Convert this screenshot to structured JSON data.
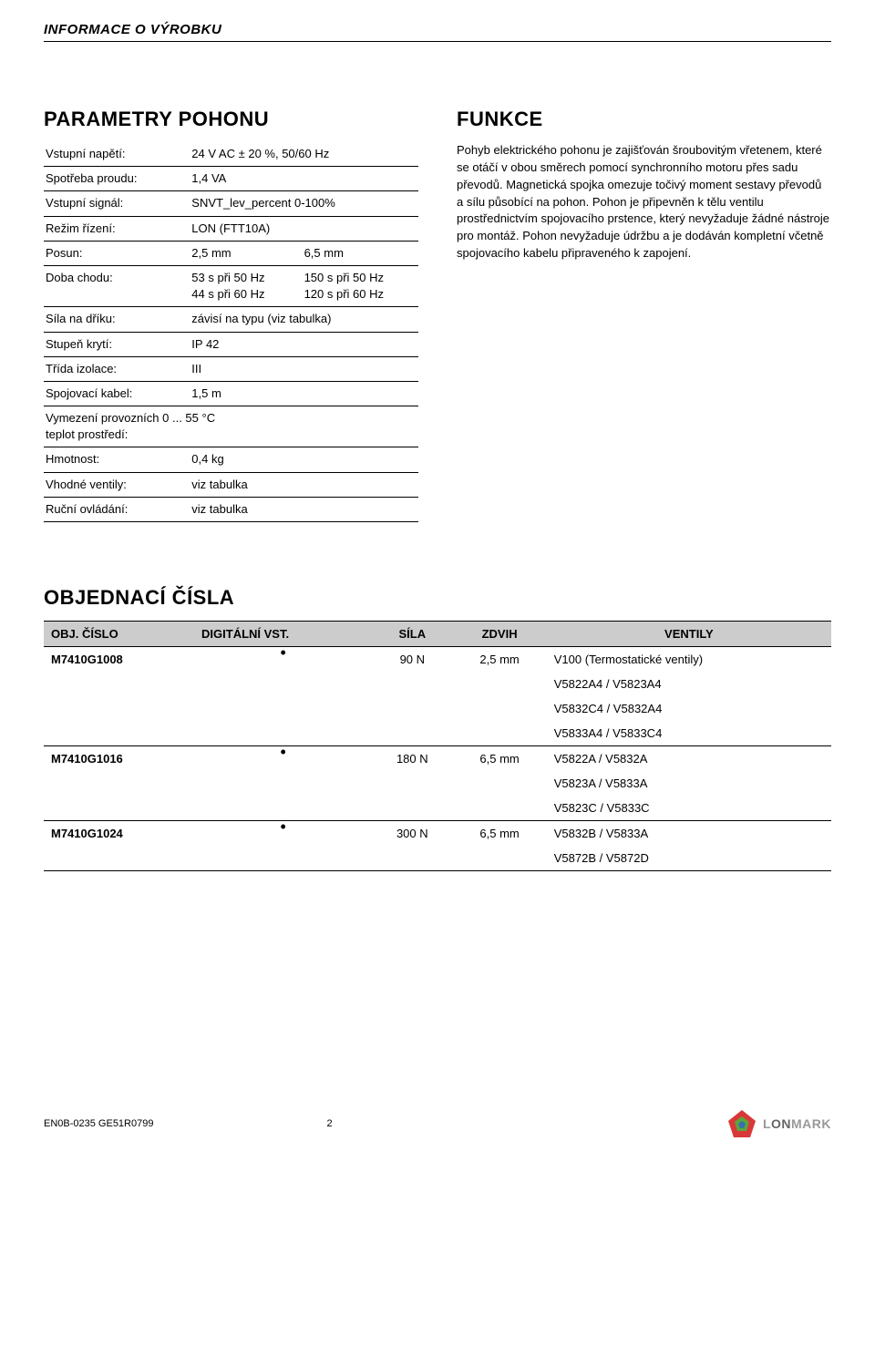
{
  "header": "INFORMACE O VÝROBKU",
  "left": {
    "title": "PARAMETRY POHONU",
    "rows": [
      {
        "label": "Vstupní napětí:",
        "v1": "24 V AC ± 20 %, 50/60 Hz",
        "v2": ""
      },
      {
        "label": "Spotřeba proudu:",
        "v1": "1,4 VA",
        "v2": ""
      },
      {
        "label": "Vstupní signál:",
        "v1": "SNVT_lev_percent 0-100%",
        "v2": ""
      },
      {
        "label": "Režim řízení:",
        "v1": "LON (FTT10A)",
        "v2": ""
      },
      {
        "label": "Posun:",
        "v1": "2,5 mm",
        "v2": "6,5 mm"
      },
      {
        "label": "Doba chodu:",
        "v1": "53 s při 50 Hz\n44 s při 60 Hz",
        "v2": "150 s při 50 Hz\n120 s při 60 Hz"
      },
      {
        "label": "Síla na dříku:",
        "v1": "závisí na typu (viz tabulka)",
        "v2": ""
      },
      {
        "label": "Stupeň krytí:",
        "v1": "IP 42",
        "v2": ""
      },
      {
        "label": "Třída izolace:",
        "v1": "III",
        "v2": ""
      },
      {
        "label": "Spojovací kabel:",
        "v1": "1,5 m",
        "v2": ""
      },
      {
        "label": "Vymezení provozních\nteplot prostředí:",
        "v1": "0 ... 55 °C",
        "v2": "",
        "merge": true
      },
      {
        "label": "Hmotnost:",
        "v1": "0,4 kg",
        "v2": ""
      },
      {
        "label": "Vhodné ventily:",
        "v1": "viz tabulka",
        "v2": ""
      },
      {
        "label": "Ruční ovládání:",
        "v1": "viz tabulka",
        "v2": ""
      }
    ]
  },
  "right": {
    "title": "FUNKCE",
    "body": "Pohyb elektrického pohonu je zajišťován šroubovitým vřetenem, které se otáčí v obou směrech pomocí synchronního motoru přes sadu převodů. Magnetická spojka omezuje točivý moment sestavy převodů a sílu působící na pohon. Pohon je připevněn k tělu ventilu prostřednictvím spojovacího prstence, který nevyžaduje žádné nástroje pro montáž. Pohon nevyžaduje údržbu a je dodáván kompletní včetně spojovacího kabelu připraveného k zapojení."
  },
  "order": {
    "title": "OBJEDNACÍ ČÍSLA",
    "headers": [
      "OBJ. ČÍSLO",
      "DIGITÁLNÍ VST.",
      "SÍLA",
      "ZDVIH",
      "VENTILY"
    ],
    "rows": [
      {
        "num": "M7410G1008",
        "dig": "•",
        "force": "90 N",
        "stroke": "2,5 mm",
        "valves": "V100 (Termostatické ventily)",
        "noborder": true
      },
      {
        "num": "",
        "dig": "",
        "force": "",
        "stroke": "",
        "valves": "V5822A4 / V5823A4",
        "noborder": true
      },
      {
        "num": "",
        "dig": "",
        "force": "",
        "stroke": "",
        "valves": "V5832C4 / V5832A4",
        "noborder": true
      },
      {
        "num": "",
        "dig": "",
        "force": "",
        "stroke": "",
        "valves": "V5833A4 / V5833C4"
      },
      {
        "num": "M7410G1016",
        "dig": "•",
        "force": "180 N",
        "stroke": "6,5 mm",
        "valves": "V5822A / V5832A",
        "noborder": true
      },
      {
        "num": "",
        "dig": "",
        "force": "",
        "stroke": "",
        "valves": "V5823A / V5833A",
        "noborder": true
      },
      {
        "num": "",
        "dig": "",
        "force": "",
        "stroke": "",
        "valves": "V5823C / V5833C"
      },
      {
        "num": "M7410G1024",
        "dig": "•",
        "force": "300 N",
        "stroke": "6,5 mm",
        "valves": "V5832B / V5833A",
        "noborder": true
      },
      {
        "num": "",
        "dig": "",
        "force": "",
        "stroke": "",
        "valves": "V5872B / V5872D"
      }
    ]
  },
  "footer": {
    "doc": "EN0B-0235 GE51R0799",
    "page": "2",
    "logo_text_l": "L",
    "logo_text_on": "ON",
    "logo_text_mark": "MARK"
  },
  "colors": {
    "header_bg": "#cccccc",
    "text": "#000000",
    "logo_gray": "#999999"
  }
}
